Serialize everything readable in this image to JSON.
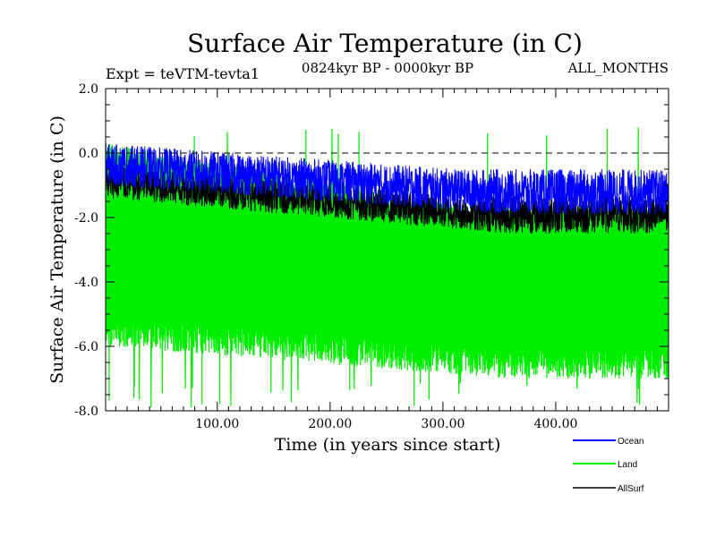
{
  "chart_data": {
    "type": "line",
    "title": "Surface Air Temperature (in C)",
    "subtitle_left": "Expt = teVTM-tevta1",
    "subtitle_center": "0824kyr BP - 0000kyr BP",
    "subtitle_right": "ALL_MONTHS",
    "xlabel": "Time (in years since start)",
    "ylabel": "Surface Air Temperature (in C)",
    "xlim": [
      1,
      500
    ],
    "ylim": [
      -8,
      2
    ],
    "x_ticks": [
      100,
      200,
      300,
      400
    ],
    "x_tick_labels": [
      "100.00",
      "200.00",
      "300.00",
      "400.00"
    ],
    "y_ticks": [
      2,
      0,
      -2,
      -4,
      -6,
      -8
    ],
    "y_tick_labels": [
      "2.0",
      "0.0",
      "-2.0",
      "-4.0",
      "-6.0",
      "-8.0"
    ],
    "reference_line": {
      "y": 0,
      "style": "dashed"
    },
    "series": [
      {
        "name": "Land",
        "color": "#00ee00",
        "envelope": {
          "upper_start": 0.3,
          "upper_end": -1.6,
          "lower_start": -6.0,
          "lower_end": -7.0,
          "spike_max": 0.8,
          "spike_min": -7.9
        }
      },
      {
        "name": "AllSurf",
        "color": "#000000",
        "envelope": {
          "upper_start": -0.4,
          "upper_end": -1.3,
          "lower_start": -1.4,
          "lower_end": -2.5
        }
      },
      {
        "name": "Ocean",
        "color": "#0000ff",
        "envelope": {
          "upper_start": 0.3,
          "upper_end": -0.5,
          "lower_start": -1.0,
          "lower_end": -1.9
        }
      }
    ],
    "legend": {
      "placement": "bottom-right",
      "entries": [
        {
          "label": "Ocean",
          "color": "#0000ff"
        },
        {
          "label": "Land",
          "color": "#00ee00"
        },
        {
          "label": "AllSurf",
          "color": "#000000"
        }
      ]
    }
  }
}
